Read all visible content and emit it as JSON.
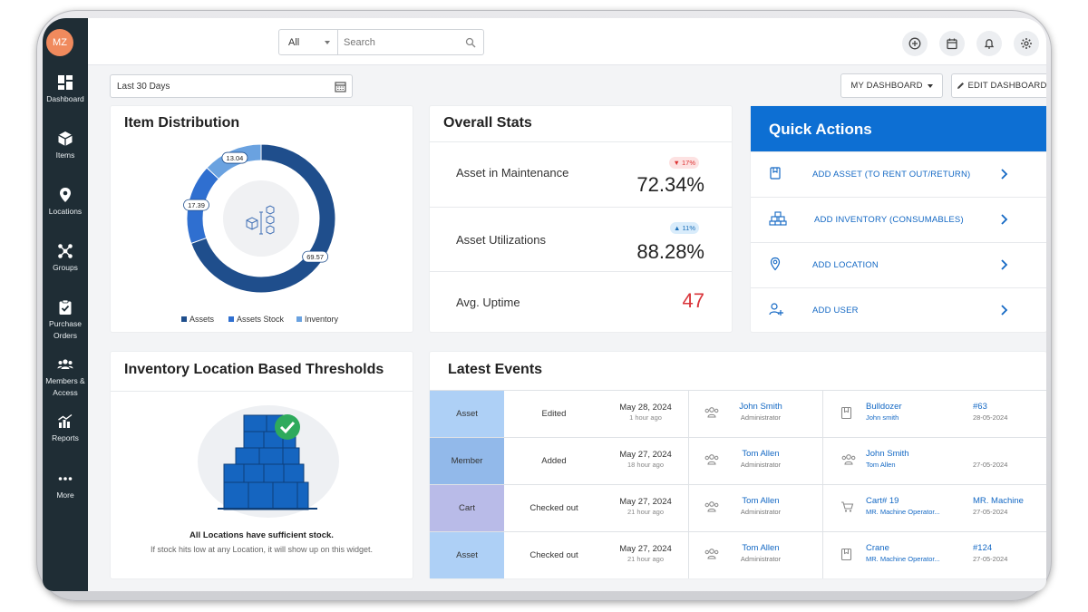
{
  "user": {
    "initials": "MZ"
  },
  "sidebar": {
    "items": [
      {
        "label": "Dashboard",
        "icon": "dashboard-icon"
      },
      {
        "label": "Items",
        "icon": "cube-icon"
      },
      {
        "label": "Locations",
        "icon": "map-pin-icon"
      },
      {
        "label": "Groups",
        "icon": "groups-icon"
      },
      {
        "label": "Purchase Orders",
        "icon": "clipboard-check-icon"
      },
      {
        "label": "Members & Access",
        "icon": "members-icon"
      },
      {
        "label": "Reports",
        "icon": "bar-chart-icon"
      },
      {
        "label": "More",
        "icon": "more-dots-icon"
      }
    ]
  },
  "search": {
    "scope": "All",
    "placeholder": "Search"
  },
  "toolbar": {
    "date_range": "Last 30 Days",
    "my_dashboard": "MY DASHBOARD",
    "edit_dashboard": "EDIT DASHBOARD"
  },
  "item_distribution": {
    "title": "Item Distribution",
    "legend": [
      {
        "label": "Assets",
        "color": "#1f4e8c"
      },
      {
        "label": "Assets Stock",
        "color": "#2f6fd0"
      },
      {
        "label": "Inventory",
        "color": "#6aa2e0"
      }
    ],
    "chart_data": {
      "type": "pie",
      "labels": [
        "Assets",
        "Assets Stock",
        "Inventory"
      ],
      "values": [
        69.57,
        17.39,
        13.04
      ],
      "value_labels": [
        "69.57",
        "17.39",
        "13.04"
      ]
    }
  },
  "overall_stats": {
    "title": "Overall Stats",
    "rows": [
      {
        "label": "Asset in Maintenance",
        "value": "72.34%",
        "badge": "17%",
        "trend": "down"
      },
      {
        "label": "Asset Utilizations",
        "value": "88.28%",
        "badge": "11%",
        "trend": "up"
      },
      {
        "label": "Avg. Uptime",
        "value": "47",
        "badge": "",
        "trend": ""
      }
    ]
  },
  "quick_actions": {
    "title": "Quick Actions",
    "items": [
      {
        "label": "ADD ASSET (TO RENT OUT/RETURN)"
      },
      {
        "label": "ADD INVENTORY (CONSUMABLES)"
      },
      {
        "label": "ADD LOCATION"
      },
      {
        "label": "ADD USER"
      }
    ]
  },
  "thresholds": {
    "title": "Inventory Location Based Thresholds",
    "message": "All Locations have sufficient stock.",
    "sub_message": "If stock hits low at any Location, it will show up on this widget."
  },
  "latest_events": {
    "title": "Latest Events",
    "rows": [
      {
        "type": "Asset",
        "type_color": "#aed0f6",
        "action": "Edited",
        "date": "May 28, 2024",
        "ago": "1 hour ago",
        "person": "John Smith",
        "role": "Administrator",
        "item": "Bulldozer",
        "item_sub": "John smith",
        "ref": "#63",
        "ref_date": "28-05-2024"
      },
      {
        "type": "Member",
        "type_color": "#92b9ea",
        "action": "Added",
        "date": "May 27, 2024",
        "ago": "18 hour ago",
        "person": "Tom Allen",
        "role": "Administrator",
        "item": "John Smith",
        "item_sub": "Tom Allen",
        "ref": "",
        "ref_date": "27-05-2024"
      },
      {
        "type": "Cart",
        "type_color": "#b9bbe8",
        "action": "Checked out",
        "date": "May 27, 2024",
        "ago": "21 hour ago",
        "person": "Tom Allen",
        "role": "Administrator",
        "item": "Cart# 19",
        "item_sub": "MR. Machine Operator...",
        "ref": "MR. Machine",
        "ref_date": "27-05-2024"
      },
      {
        "type": "Asset",
        "type_color": "#aed0f6",
        "action": "Checked out",
        "date": "May 27, 2024",
        "ago": "21 hour ago",
        "person": "Tom Allen",
        "role": "Administrator",
        "item": "Crane",
        "item_sub": "MR. Machine Operator...",
        "ref": "#124",
        "ref_date": "27-05-2024"
      }
    ]
  }
}
